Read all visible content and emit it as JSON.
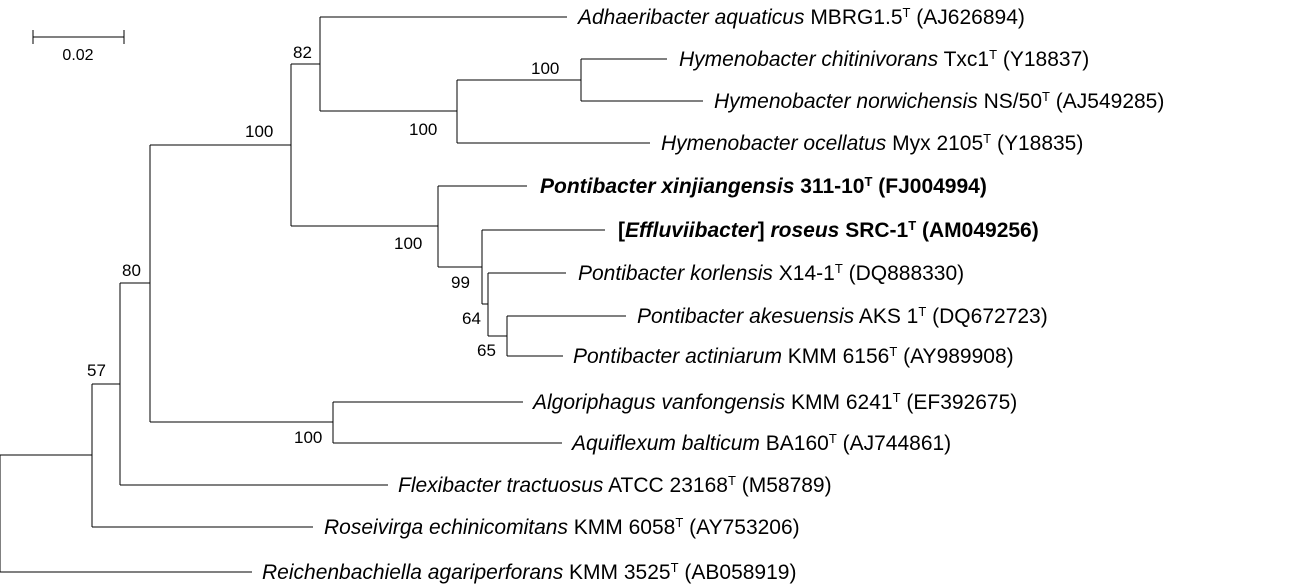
{
  "scale_bar": {
    "label": "0.02"
  },
  "taxa": [
    {
      "id": "t1",
      "genus": "Adhaeribacter",
      "species": "aquaticus",
      "strain": "MBRG1.5",
      "accession": "(AJ626894)",
      "bold": false
    },
    {
      "id": "t2",
      "genus": "Hymenobacter",
      "species": "chitinivorans",
      "strain": "Txc1",
      "accession": "(Y18837)",
      "bold": false
    },
    {
      "id": "t3",
      "genus": "Hymenobacter",
      "species": "norwichensis",
      "strain": "NS/50",
      "accession": "(AJ549285)",
      "bold": false
    },
    {
      "id": "t4",
      "genus": "Hymenobacter",
      "species": "ocellatus",
      "strain": "Myx 2105",
      "accession": "(Y18835)",
      "bold": false
    },
    {
      "id": "t5",
      "genus": "Pontibacter",
      "species": "xinjiangensis",
      "strain": "311-10",
      "accession": "(FJ004994)",
      "bold": true
    },
    {
      "id": "t6",
      "genus": "Effluviibacter",
      "species": "roseus",
      "strain": "SRC-1",
      "accession": "(AM049256)",
      "bold": true,
      "bracketed_genus": true
    },
    {
      "id": "t7",
      "genus": "Pontibacter",
      "species": "korlensis",
      "strain": "X14-1",
      "accession": "(DQ888330)",
      "bold": false
    },
    {
      "id": "t8",
      "genus": "Pontibacter",
      "species": "akesuensis",
      "strain": "AKS 1",
      "accession": "(DQ672723)",
      "bold": false
    },
    {
      "id": "t9",
      "genus": "Pontibacter",
      "species": "actiniarum",
      "strain": "KMM 6156",
      "accession": "(AY989908)",
      "bold": false
    },
    {
      "id": "t10",
      "genus": "Algoriphagus",
      "species": "vanfongensis",
      "strain": "KMM 6241",
      "accession": "(EF392675)",
      "bold": false
    },
    {
      "id": "t11",
      "genus": "Aquiflexum",
      "species": "balticum",
      "strain": "BA160",
      "accession": "(AJ744861)",
      "bold": false
    },
    {
      "id": "t12",
      "genus": "Flexibacter",
      "species": "tractuosus",
      "strain": "ATCC 23168",
      "accession": "(M58789)",
      "bold": false
    },
    {
      "id": "t13",
      "genus": "Roseivirga",
      "species": "echinicomitans",
      "strain": "KMM 6058",
      "accession": "(AY753206)",
      "bold": false
    },
    {
      "id": "t14",
      "genus": "Reichenbachiella",
      "species": "agariperforans",
      "strain": "KMM 3525",
      "accession": "(AB058919)",
      "bold": false
    }
  ],
  "type_strain_mark": "T",
  "bootstrap": [
    "82",
    "100",
    "100",
    "100",
    "100",
    "99",
    "64",
    "65",
    "80",
    "100",
    "57"
  ]
}
